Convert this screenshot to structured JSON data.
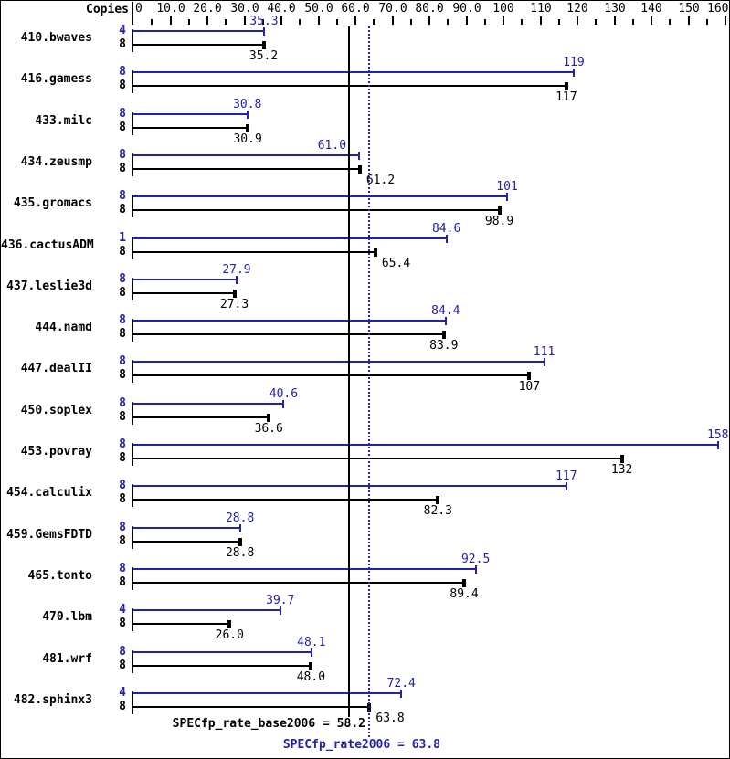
{
  "header": {
    "copies_label": "Copies"
  },
  "axis": {
    "min": 0,
    "max": 160,
    "major_ticks": [
      0,
      10,
      20,
      30,
      40,
      50,
      60,
      70,
      80,
      90,
      100,
      110,
      120,
      130,
      140,
      150,
      160
    ],
    "tick_labels": [
      "0",
      "10.0",
      "20.0",
      "30.0",
      "40.0",
      "50.0",
      "60.0",
      "70.0",
      "80.0",
      "90.0",
      "100",
      "110",
      "120",
      "130",
      "140",
      "150",
      "160"
    ],
    "minor_tick_step": 5
  },
  "chart_data": {
    "type": "bar",
    "orientation": "horizontal",
    "xlim": [
      0,
      160
    ],
    "grid": false,
    "series_names": [
      "peak",
      "base"
    ],
    "colors": {
      "peak": "#2222aa",
      "base": "#000000"
    },
    "benchmarks": [
      {
        "name": "410.bwaves",
        "peak_copies": "4",
        "peak": 35.3,
        "peak_label": "35.3",
        "base_copies": "8",
        "base": 35.2,
        "base_label": "35.2"
      },
      {
        "name": "416.gamess",
        "peak_copies": "8",
        "peak": 119,
        "peak_label": "119",
        "base_copies": "8",
        "base": 117,
        "base_label": "117"
      },
      {
        "name": "433.milc",
        "peak_copies": "8",
        "peak": 30.8,
        "peak_label": "30.8",
        "base_copies": "8",
        "base": 30.9,
        "base_label": "30.9"
      },
      {
        "name": "434.zeusmp",
        "peak_copies": "8",
        "peak": 61.0,
        "peak_label": "61.0",
        "base_copies": "8",
        "base": 61.2,
        "base_label": "61.2"
      },
      {
        "name": "435.gromacs",
        "peak_copies": "8",
        "peak": 101,
        "peak_label": "101",
        "base_copies": "8",
        "base": 98.9,
        "base_label": "98.9"
      },
      {
        "name": "436.cactusADM",
        "peak_copies": "1",
        "peak": 84.6,
        "peak_label": "84.6",
        "base_copies": "8",
        "base": 65.4,
        "base_label": "65.4"
      },
      {
        "name": "437.leslie3d",
        "peak_copies": "8",
        "peak": 27.9,
        "peak_label": "27.9",
        "base_copies": "8",
        "base": 27.3,
        "base_label": "27.3"
      },
      {
        "name": "444.namd",
        "peak_copies": "8",
        "peak": 84.4,
        "peak_label": "84.4",
        "base_copies": "8",
        "base": 83.9,
        "base_label": "83.9"
      },
      {
        "name": "447.dealII",
        "peak_copies": "8",
        "peak": 111,
        "peak_label": "111",
        "base_copies": "8",
        "base": 107,
        "base_label": "107"
      },
      {
        "name": "450.soplex",
        "peak_copies": "8",
        "peak": 40.6,
        "peak_label": "40.6",
        "base_copies": "8",
        "base": 36.6,
        "base_label": "36.6"
      },
      {
        "name": "453.povray",
        "peak_copies": "8",
        "peak": 158,
        "peak_label": "158",
        "base_copies": "8",
        "base": 132,
        "base_label": "132"
      },
      {
        "name": "454.calculix",
        "peak_copies": "8",
        "peak": 117,
        "peak_label": "117",
        "base_copies": "8",
        "base": 82.3,
        "base_label": "82.3"
      },
      {
        "name": "459.GemsFDTD",
        "peak_copies": "8",
        "peak": 28.8,
        "peak_label": "28.8",
        "base_copies": "8",
        "base": 28.8,
        "base_label": "28.8"
      },
      {
        "name": "465.tonto",
        "peak_copies": "8",
        "peak": 92.5,
        "peak_label": "92.5",
        "base_copies": "8",
        "base": 89.4,
        "base_label": "89.4"
      },
      {
        "name": "470.lbm",
        "peak_copies": "4",
        "peak": 39.7,
        "peak_label": "39.7",
        "base_copies": "8",
        "base": 26.0,
        "base_label": "26.0"
      },
      {
        "name": "481.wrf",
        "peak_copies": "8",
        "peak": 48.1,
        "peak_label": "48.1",
        "base_copies": "8",
        "base": 48.0,
        "base_label": "48.0"
      },
      {
        "name": "482.sphinx3",
        "peak_copies": "4",
        "peak": 72.4,
        "peak_label": "72.4",
        "base_copies": "8",
        "base": 63.8,
        "base_label": "63.8"
      }
    ],
    "reference_lines": [
      {
        "name": "base_mean",
        "label": "SPECfp_rate_base2006 = 58.2",
        "value": 58.2,
        "style": "solid",
        "color": "#000000"
      },
      {
        "name": "peak_mean",
        "label": "SPECfp_rate2006 = 63.8",
        "value": 63.8,
        "style": "dotted",
        "color": "#2222aa"
      }
    ]
  }
}
